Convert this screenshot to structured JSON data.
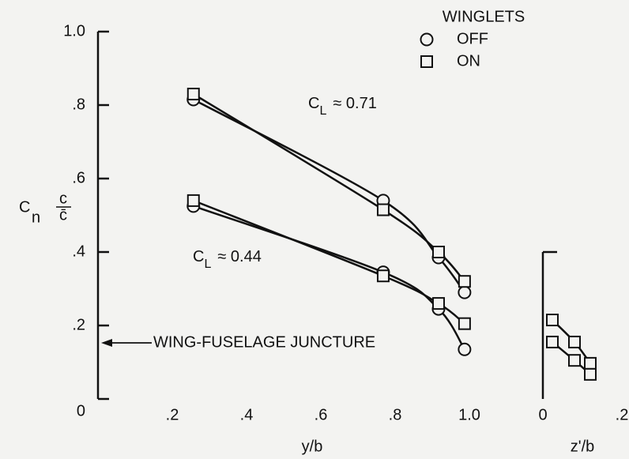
{
  "chart_data": [
    {
      "type": "line",
      "legend": {
        "title": "WINGLETS",
        "entries": [
          {
            "name": "OFF",
            "marker": "circle"
          },
          {
            "name": "ON",
            "marker": "square"
          }
        ]
      },
      "x_label": "y/b",
      "y_label": [
        "C",
        "n",
        "c",
        "c̄"
      ],
      "annotations": [
        {
          "parts": [
            "C",
            "L",
            "≈ 0.71"
          ]
        },
        {
          "parts": [
            "C",
            "L",
            "≈ 0.44"
          ]
        },
        {
          "text": "WING-FUSELAGE JUNCTURE"
        }
      ],
      "x": [
        0.257,
        0.768,
        0.917,
        0.987
      ],
      "series": [
        {
          "marker": "circle",
          "color": "#111111",
          "values": [
            0.815,
            0.54,
            0.385,
            0.29
          ]
        },
        {
          "marker": "square",
          "color": "#111111",
          "values": [
            0.83,
            0.515,
            0.4,
            0.32
          ]
        },
        {
          "marker": "circle",
          "color": "#111111",
          "values": [
            0.525,
            0.345,
            0.245,
            0.135
          ]
        },
        {
          "marker": "square",
          "color": "#111111",
          "values": [
            0.54,
            0.335,
            0.26,
            0.205
          ]
        }
      ],
      "xlim": [
        0,
        1.0
      ],
      "xticks": [
        {
          "value": 0.2,
          "label": ".2"
        },
        {
          "value": 0.4,
          "label": ".4"
        },
        {
          "value": 0.6,
          "label": ".6"
        },
        {
          "value": 0.8,
          "label": ".8"
        },
        {
          "value": 1.0,
          "label": "1.0"
        }
      ],
      "ylim": [
        0,
        1.0
      ],
      "yticks": [
        0,
        {
          "value": 0.2,
          "label": ".2"
        },
        {
          "value": 0.4,
          "label": ".4"
        },
        {
          "value": 0.6,
          "label": ".6"
        },
        {
          "value": 0.8,
          "label": ".8"
        },
        {
          "value": 1.0,
          "label": "1.0"
        }
      ]
    },
    {
      "type": "line",
      "x_label": "z'/b",
      "x": [
        0.024,
        0.08,
        0.12
      ],
      "series": [
        {
          "marker": "square",
          "color": "#111111",
          "values": [
            0.215,
            0.155,
            0.097
          ]
        },
        {
          "marker": "square",
          "color": "#111111",
          "values": [
            0.155,
            0.105,
            0.067
          ]
        }
      ],
      "xlim": [
        0,
        0.2
      ],
      "xticks": [
        0,
        {
          "value": 0.2,
          "label": ".2"
        }
      ],
      "ylim": [
        0,
        0.4
      ]
    }
  ]
}
